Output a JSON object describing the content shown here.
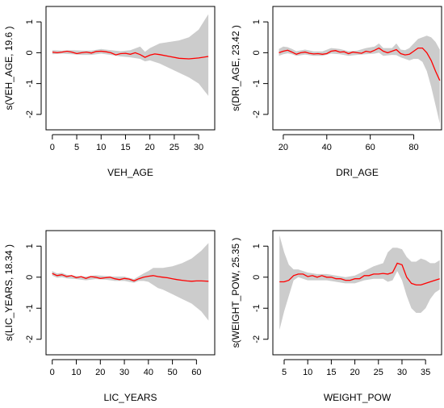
{
  "chart_data": [
    {
      "type": "line",
      "xlabel": "VEH_AGE",
      "ylabel": "s(VEH_AGE, 19.6 )",
      "xlim": [
        -1.3,
        33.3
      ],
      "ylim": [
        -2.5,
        1.5
      ],
      "xticks": [
        0,
        5,
        10,
        15,
        20,
        25,
        30
      ],
      "yticks": [
        -2,
        -1,
        0,
        1
      ],
      "colors": {
        "fit": "#ff0000",
        "band": "#cccccc"
      },
      "fit": {
        "x": [
          0,
          1,
          2,
          3,
          4,
          5,
          6,
          7,
          8,
          9,
          10,
          11,
          12,
          13,
          14,
          15,
          16,
          17,
          18,
          19,
          20,
          21,
          22,
          24,
          26,
          28,
          30,
          32
        ],
        "y": [
          0.02,
          0.0,
          0.02,
          0.05,
          0.02,
          -0.03,
          0.0,
          0.02,
          -0.01,
          0.04,
          0.05,
          0.03,
          0.0,
          -0.07,
          -0.03,
          -0.02,
          -0.05,
          0.0,
          -0.06,
          -0.15,
          -0.08,
          -0.04,
          -0.06,
          -0.12,
          -0.18,
          -0.2,
          -0.17,
          -0.12
        ]
      },
      "band": {
        "x": [
          0,
          2,
          4,
          6,
          8,
          10,
          12,
          14,
          16,
          18,
          19,
          20,
          22,
          24,
          26,
          28,
          30,
          32
        ],
        "lower": [
          -0.05,
          -0.03,
          -0.05,
          -0.07,
          -0.07,
          -0.03,
          -0.07,
          -0.12,
          -0.15,
          -0.2,
          -0.28,
          -0.25,
          -0.35,
          -0.5,
          -0.65,
          -0.8,
          -1.0,
          -1.4
        ],
        "upper": [
          0.08,
          0.07,
          0.08,
          0.07,
          0.07,
          0.12,
          0.08,
          0.05,
          0.08,
          0.2,
          0.03,
          0.15,
          0.3,
          0.35,
          0.4,
          0.5,
          0.75,
          1.25
        ]
      }
    },
    {
      "type": "line",
      "xlabel": "DRI_AGE",
      "ylabel": "s(DRI_AGE, 23.42 )",
      "xlim": [
        15.2,
        92.8
      ],
      "ylim": [
        -2.5,
        1.5
      ],
      "xticks": [
        20,
        40,
        60,
        80
      ],
      "yticks": [
        -2,
        -1,
        0,
        1
      ],
      "colors": {
        "fit": "#ff0000",
        "band": "#cccccc"
      },
      "fit": {
        "x": [
          18,
          20,
          22,
          24,
          26,
          28,
          30,
          32,
          34,
          36,
          38,
          40,
          42,
          44,
          46,
          48,
          50,
          52,
          54,
          56,
          58,
          60,
          62,
          64,
          66,
          68,
          70,
          72,
          74,
          76,
          78,
          80,
          82,
          84,
          86,
          88,
          90,
          92
        ],
        "y": [
          0.0,
          0.05,
          0.08,
          0.02,
          -0.05,
          0.0,
          0.02,
          -0.02,
          -0.04,
          -0.03,
          -0.05,
          -0.03,
          0.05,
          0.07,
          0.02,
          0.03,
          -0.03,
          0.02,
          0.0,
          -0.02,
          0.05,
          0.02,
          0.08,
          0.15,
          0.05,
          0.0,
          0.05,
          0.1,
          -0.03,
          -0.07,
          -0.05,
          0.05,
          0.15,
          0.15,
          0.0,
          -0.25,
          -0.6,
          -0.9
        ]
      },
      "band": {
        "x": [
          18,
          20,
          22,
          24,
          26,
          30,
          34,
          38,
          42,
          46,
          50,
          54,
          58,
          62,
          64,
          66,
          70,
          72,
          74,
          76,
          78,
          80,
          82,
          84,
          86,
          88,
          90,
          92
        ],
        "lower": [
          -0.1,
          -0.05,
          -0.02,
          -0.05,
          -0.1,
          -0.06,
          -0.1,
          -0.1,
          -0.03,
          -0.05,
          -0.1,
          -0.07,
          -0.05,
          -0.03,
          0.0,
          -0.1,
          -0.07,
          -0.08,
          -0.15,
          -0.2,
          -0.25,
          -0.2,
          -0.2,
          -0.3,
          -0.6,
          -1.1,
          -1.7,
          -2.3
        ],
        "upper": [
          0.12,
          0.2,
          0.18,
          0.12,
          0.05,
          0.1,
          0.04,
          0.04,
          0.15,
          0.12,
          0.05,
          0.07,
          0.15,
          0.2,
          0.3,
          0.15,
          0.15,
          0.3,
          0.1,
          0.08,
          0.15,
          0.3,
          0.45,
          0.5,
          0.55,
          0.5,
          0.35,
          0.1
        ]
      }
    },
    {
      "type": "line",
      "xlabel": "LIC_YEARS",
      "ylabel": "s(LIC_YEARS, 18.34 )",
      "xlim": [
        -2.6,
        67.6
      ],
      "ylim": [
        -2.5,
        1.5
      ],
      "xticks": [
        0,
        10,
        20,
        30,
        40,
        50,
        60
      ],
      "yticks": [
        -2,
        -1,
        0,
        1
      ],
      "colors": {
        "fit": "#ff0000",
        "band": "#cccccc"
      },
      "fit": {
        "x": [
          0,
          2,
          4,
          6,
          8,
          10,
          12,
          14,
          16,
          18,
          20,
          22,
          24,
          26,
          28,
          30,
          32,
          34,
          36,
          38,
          40,
          42,
          44,
          46,
          48,
          50,
          52,
          54,
          56,
          58,
          60,
          62,
          65
        ],
        "y": [
          0.12,
          0.05,
          0.08,
          0.02,
          0.05,
          -0.02,
          0.02,
          -0.04,
          0.02,
          0.0,
          -0.04,
          -0.02,
          0.0,
          -0.05,
          -0.08,
          -0.04,
          -0.06,
          -0.12,
          -0.05,
          0.0,
          0.03,
          0.05,
          0.02,
          0.0,
          -0.02,
          -0.05,
          -0.08,
          -0.1,
          -0.12,
          -0.13,
          -0.12,
          -0.12,
          -0.13
        ]
      },
      "band": {
        "x": [
          0,
          2,
          4,
          6,
          10,
          14,
          18,
          22,
          26,
          30,
          34,
          36,
          38,
          40,
          42,
          44,
          46,
          50,
          54,
          58,
          62,
          65
        ],
        "lower": [
          0.05,
          -0.02,
          0.0,
          -0.04,
          -0.06,
          -0.1,
          -0.06,
          -0.08,
          -0.12,
          -0.12,
          -0.18,
          -0.12,
          -0.12,
          -0.15,
          -0.25,
          -0.35,
          -0.4,
          -0.55,
          -0.7,
          -0.85,
          -1.1,
          -1.4
        ],
        "upper": [
          0.2,
          0.12,
          0.14,
          0.08,
          0.04,
          0.02,
          0.06,
          0.04,
          0.02,
          0.02,
          -0.06,
          0.03,
          0.12,
          0.2,
          0.3,
          0.3,
          0.3,
          0.35,
          0.45,
          0.6,
          0.85,
          1.1
        ]
      }
    },
    {
      "type": "line",
      "xlabel": "WEIGHT_POW",
      "ylabel": "s(WEIGHT_POW, 25.35 )",
      "xlim": [
        2.6,
        38.4
      ],
      "ylim": [
        -2.5,
        1.5
      ],
      "xticks": [
        5,
        10,
        15,
        20,
        25,
        30,
        35
      ],
      "yticks": [
        -2,
        -1,
        0,
        1
      ],
      "colors": {
        "fit": "#ff0000",
        "band": "#cccccc"
      },
      "fit": {
        "x": [
          4,
          5,
          6,
          7,
          8,
          9,
          10,
          11,
          12,
          13,
          14,
          15,
          16,
          17,
          18,
          19,
          20,
          21,
          22,
          23,
          24,
          25,
          26,
          27,
          28,
          29,
          30,
          31,
          32,
          33,
          34,
          35,
          36,
          37,
          38
        ],
        "y": [
          -0.15,
          -0.15,
          -0.1,
          0.05,
          0.1,
          0.1,
          0.02,
          0.05,
          0.0,
          0.05,
          0.0,
          0.0,
          -0.05,
          -0.05,
          -0.1,
          -0.1,
          -0.05,
          -0.05,
          0.05,
          0.05,
          0.1,
          0.1,
          0.12,
          0.1,
          0.15,
          0.45,
          0.4,
          0.0,
          -0.2,
          -0.25,
          -0.25,
          -0.2,
          -0.15,
          -0.1,
          -0.05
        ]
      },
      "band": {
        "x": [
          4,
          5,
          6,
          7,
          8,
          9,
          10,
          12,
          14,
          16,
          18,
          20,
          22,
          24,
          26,
          27,
          28,
          29,
          30,
          31,
          32,
          33,
          34,
          35,
          36,
          37,
          38
        ],
        "lower": [
          -1.7,
          -1.1,
          -0.6,
          -0.1,
          0.0,
          -0.05,
          -0.1,
          -0.1,
          -0.1,
          -0.15,
          -0.2,
          -0.2,
          -0.1,
          -0.05,
          -0.05,
          -0.15,
          -0.1,
          0.2,
          -0.1,
          -0.6,
          -1.0,
          -1.15,
          -1.15,
          -1.0,
          -0.7,
          -0.5,
          -0.4
        ],
        "upper": [
          1.35,
          0.8,
          0.4,
          0.25,
          0.25,
          0.2,
          0.15,
          0.1,
          0.1,
          0.05,
          0.0,
          0.05,
          0.2,
          0.35,
          0.45,
          0.8,
          0.95,
          0.95,
          0.9,
          0.65,
          0.5,
          0.5,
          0.6,
          0.55,
          0.45,
          0.45,
          0.55
        ]
      }
    }
  ]
}
